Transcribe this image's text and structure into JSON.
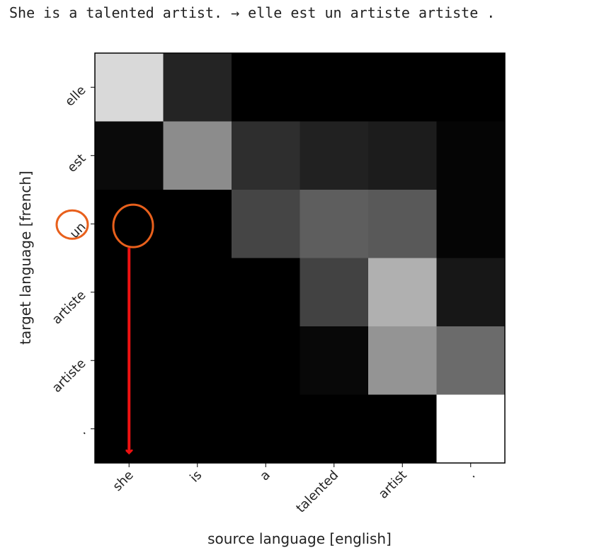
{
  "caption": {
    "text": "She is a talented artist. → elle est un artiste artiste ."
  },
  "chart_data": {
    "type": "heatmap",
    "colormap": "gray",
    "grid": false,
    "xlabel": "source language [english]",
    "ylabel": "target language [french]",
    "x_categories": [
      "she",
      "is",
      "a",
      "talented",
      "artist",
      "."
    ],
    "y_categories": [
      "elle",
      "est",
      "un",
      "artiste",
      "artiste",
      "."
    ],
    "values": [
      [
        0.85,
        0.14,
        0.0,
        0.0,
        0.0,
        0.0
      ],
      [
        0.04,
        0.55,
        0.18,
        0.13,
        0.11,
        0.02
      ],
      [
        0.0,
        0.0,
        0.27,
        0.37,
        0.35,
        0.02
      ],
      [
        0.0,
        0.0,
        0.0,
        0.26,
        0.69,
        0.09
      ],
      [
        0.0,
        0.0,
        0.0,
        0.03,
        0.58,
        0.42
      ],
      [
        0.0,
        0.0,
        0.0,
        0.0,
        0.0,
        1.0
      ]
    ],
    "annotations": {
      "highlighted_y_label": "un",
      "highlighted_cell": {
        "x": "she",
        "y": "un"
      },
      "arrow": {
        "from": {
          "x": "she",
          "y": "un"
        },
        "direction": "down",
        "to_axis": "x"
      },
      "circle_color": "#e8601c",
      "arrow_color": "#ee1111"
    }
  }
}
